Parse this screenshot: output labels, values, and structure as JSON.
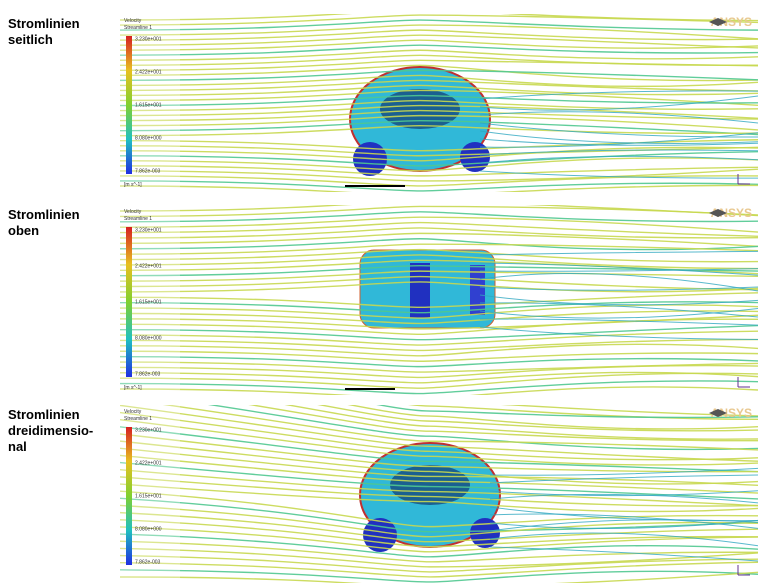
{
  "panels": [
    {
      "label": [
        "Stromlinien",
        "seitlich"
      ],
      "legend_title": "Velocity",
      "legend_subtitle": "Streamline 1",
      "legend_ticks": [
        "3.230e+001",
        "2.422e+001",
        "1.615e+001",
        "8.080e+000",
        "7.862e-003"
      ],
      "unit": "[m s^-1]",
      "logo": "ANSYS"
    },
    {
      "label": [
        "Stromlinien",
        "oben"
      ],
      "legend_title": "Velocity",
      "legend_subtitle": "Streamline 1",
      "legend_ticks": [
        "3.230e+001",
        "2.422e+001",
        "1.615e+001",
        "8.080e+000",
        "7.862e-003"
      ],
      "unit": "[m s^-1]",
      "logo": "ANSYS"
    },
    {
      "label": [
        "Stromlinien",
        "dreidimensio-",
        "nal"
      ],
      "legend_title": "Velocity",
      "legend_subtitle": "Streamline 1",
      "legend_ticks": [
        "3.230e+001",
        "2.422e+001",
        "1.615e+001",
        "8.080e+000",
        "7.862e-003"
      ],
      "logo": "ANSYS"
    }
  ]
}
